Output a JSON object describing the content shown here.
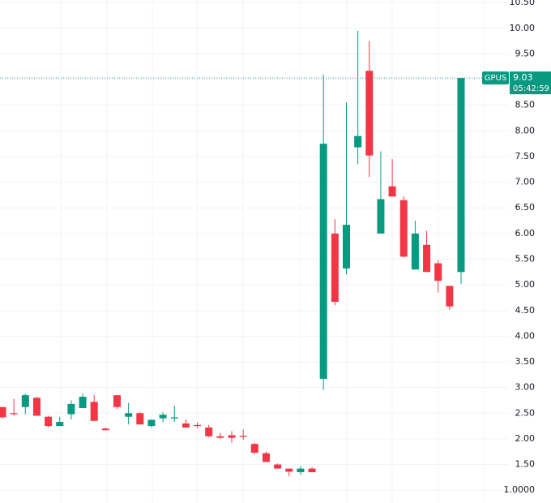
{
  "chart_data": {
    "type": "candlestick",
    "symbol": "GPUS",
    "last": 9.03,
    "countdown": "05:42:59",
    "up_color": "#089981",
    "down_color": "#f23645",
    "ylim": [
      0.75,
      10.55
    ],
    "yticks": [
      {
        "value": 10.5,
        "label": "10.50"
      },
      {
        "value": 10,
        "label": "10.00"
      },
      {
        "value": 9.5,
        "label": "9.50"
      },
      {
        "value": 9,
        "label": "9.00"
      },
      {
        "value": 8.5,
        "label": "8.50"
      },
      {
        "value": 8,
        "label": "8.00"
      },
      {
        "value": 7.5,
        "label": "7.50"
      },
      {
        "value": 7,
        "label": "7.00"
      },
      {
        "value": 6.5,
        "label": "6.50"
      },
      {
        "value": 6,
        "label": "6.00"
      },
      {
        "value": 5.5,
        "label": "5.50"
      },
      {
        "value": 5,
        "label": "5.00"
      },
      {
        "value": 4.5,
        "label": "4.50"
      },
      {
        "value": 4,
        "label": "4.00"
      },
      {
        "value": 3.5,
        "label": "3.50"
      },
      {
        "value": 3,
        "label": "3.00"
      },
      {
        "value": 2.5,
        "label": "2.50"
      },
      {
        "value": 2,
        "label": "2.00"
      },
      {
        "value": 1.5,
        "label": "1.50"
      },
      {
        "value": 1,
        "label": "1.0000"
      }
    ],
    "grid": true,
    "open": [
      2.62,
      2.5,
      2.62,
      2.8,
      2.43,
      2.25,
      2.48,
      2.6,
      2.72,
      2.2,
      2.85,
      2.43,
      2.5,
      2.25,
      2.4,
      2.4,
      2.3,
      2.27,
      2.22,
      2.05,
      2.07,
      2.06,
      1.9,
      1.72,
      1.5,
      1.42,
      1.35,
      1.42,
      3.17,
      6.0,
      5.32,
      7.68,
      9.17,
      6.0,
      6.92,
      6.65,
      5.3,
      5.78,
      5.42,
      4.98,
      5.25
    ],
    "high": [
      2.62,
      2.78,
      2.88,
      2.82,
      2.45,
      2.43,
      2.75,
      2.88,
      2.85,
      2.22,
      2.85,
      2.7,
      2.52,
      2.38,
      2.52,
      2.65,
      2.38,
      2.32,
      2.27,
      2.12,
      2.15,
      2.18,
      1.92,
      1.75,
      1.52,
      1.42,
      1.47,
      1.45,
      9.1,
      6.28,
      8.55,
      9.95,
      9.75,
      7.6,
      7.45,
      6.72,
      6.25,
      6.05,
      5.48,
      4.98,
      9.03
    ],
    "low": [
      2.4,
      2.45,
      2.48,
      2.45,
      2.22,
      2.25,
      2.38,
      2.6,
      2.35,
      2.16,
      2.58,
      2.28,
      2.28,
      2.22,
      2.32,
      2.33,
      2.22,
      2.2,
      2.03,
      2.0,
      1.92,
      1.98,
      1.7,
      1.55,
      1.42,
      1.27,
      1.3,
      1.35,
      2.95,
      4.6,
      5.2,
      7.35,
      7.1,
      6.0,
      6.72,
      5.53,
      5.3,
      5.25,
      4.85,
      4.52,
      5.02
    ],
    "close": [
      2.42,
      2.48,
      2.85,
      2.45,
      2.25,
      2.33,
      2.68,
      2.82,
      2.35,
      2.17,
      2.62,
      2.5,
      2.28,
      2.37,
      2.47,
      2.42,
      2.22,
      2.25,
      2.05,
      2.02,
      2.02,
      2.04,
      1.73,
      1.55,
      1.42,
      1.36,
      1.42,
      1.35,
      7.75,
      4.67,
      6.17,
      7.9,
      7.52,
      6.67,
      6.72,
      5.55,
      6.0,
      5.25,
      5.08,
      4.58,
      9.03
    ]
  }
}
